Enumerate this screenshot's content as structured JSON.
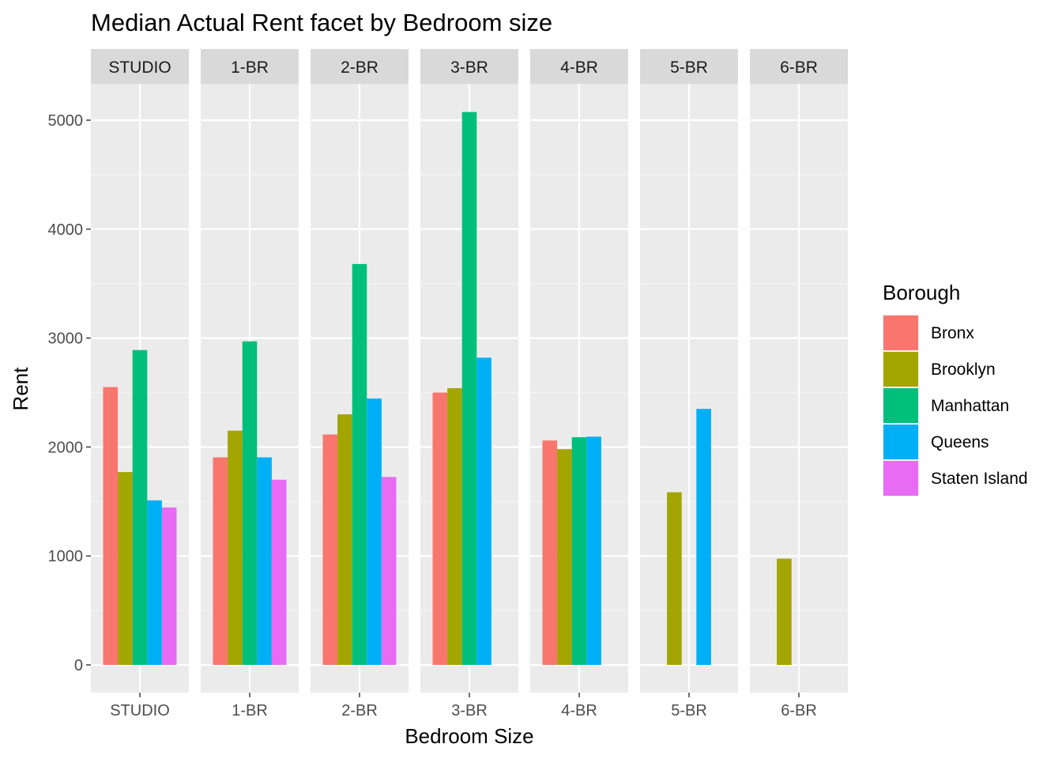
{
  "chart_data": {
    "type": "bar",
    "title": "Median Actual Rent facet by Bedroom size",
    "xlabel": "Bedroom Size",
    "ylabel": "Rent",
    "ylim": [
      -250,
      5400
    ],
    "y_ticks": [
      0,
      1000,
      2000,
      3000,
      4000,
      5000
    ],
    "y_tick_labels": [
      "0",
      "1000",
      "2000",
      "3000",
      "4000",
      "5000"
    ],
    "grid": true,
    "legend_position": "right",
    "legend_title": "Borough",
    "facet_by": "Bedroom Size",
    "categories": [
      "STUDIO",
      "1-BR",
      "2-BR",
      "3-BR",
      "4-BR",
      "5-BR",
      "6-BR"
    ],
    "series": [
      {
        "name": "Bronx",
        "color": "#F8766D",
        "values": [
          2550,
          1905,
          2115,
          2500,
          2060,
          null,
          null
        ]
      },
      {
        "name": "Brooklyn",
        "color": "#A3A500",
        "values": [
          1770,
          2150,
          2300,
          2540,
          1980,
          1585,
          975
        ]
      },
      {
        "name": "Manhattan",
        "color": "#00BF7D",
        "values": [
          2890,
          2970,
          3680,
          5075,
          2090,
          null,
          null
        ]
      },
      {
        "name": "Queens",
        "color": "#00B0F6",
        "values": [
          1510,
          1905,
          2445,
          2820,
          2095,
          2350,
          null
        ]
      },
      {
        "name": "Staten Island",
        "color": "#E76BF3",
        "values": [
          1445,
          1700,
          1725,
          null,
          null,
          null,
          null
        ]
      }
    ]
  }
}
